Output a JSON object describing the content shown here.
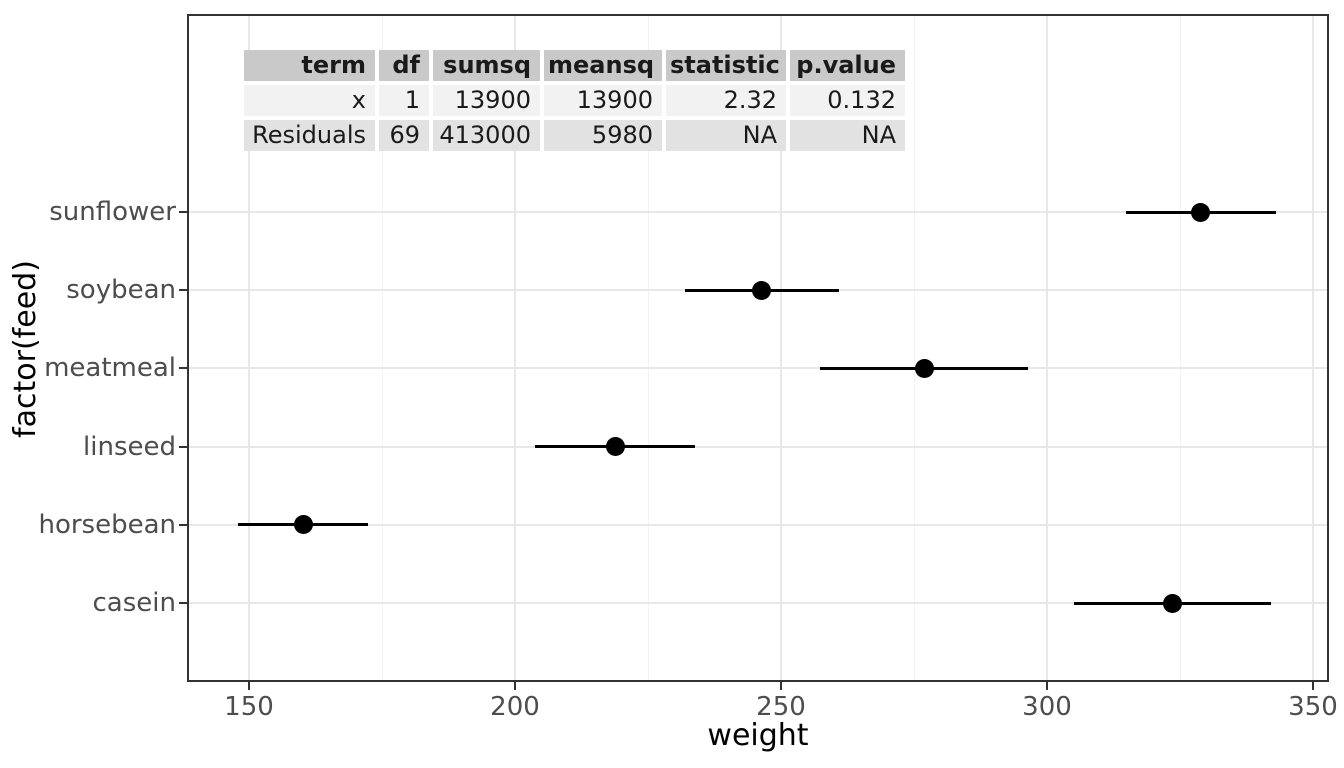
{
  "chart_data": {
    "type": "pointrange",
    "title": "",
    "xlabel": "weight",
    "ylabel": "factor(feed)",
    "x_ticks": [
      150,
      200,
      250,
      300,
      350
    ],
    "x_minor_ticks": [
      175,
      225,
      275,
      325
    ],
    "xlim": [
      138,
      353
    ],
    "grid": true,
    "legend": "none",
    "point_color": "#000000",
    "categories": [
      "sunflower",
      "soybean",
      "meatmeal",
      "linseed",
      "horsebean",
      "casein"
    ],
    "series": [
      {
        "category": "sunflower",
        "mean": 328.9,
        "low": 314.8,
        "high": 343.0
      },
      {
        "category": "soybean",
        "mean": 246.4,
        "low": 232.0,
        "high": 260.9
      },
      {
        "category": "meatmeal",
        "mean": 276.9,
        "low": 257.3,
        "high": 296.5
      },
      {
        "category": "linseed",
        "mean": 218.8,
        "low": 203.7,
        "high": 233.8
      },
      {
        "category": "horsebean",
        "mean": 160.2,
        "low": 148.0,
        "high": 172.4
      },
      {
        "category": "casein",
        "mean": 323.6,
        "low": 305.0,
        "high": 342.2
      }
    ]
  },
  "anova_table": {
    "headers": [
      "term",
      "df",
      "sumsq",
      "meansq",
      "statistic",
      "p.value"
    ],
    "rows": [
      [
        "x",
        "1",
        "13900",
        "13900",
        "2.32",
        "0.132"
      ],
      [
        "Residuals",
        "69",
        "413000",
        "5980",
        "NA",
        "NA"
      ]
    ]
  },
  "colors": {
    "header_bg": "#c9c9c9",
    "row1_bg": "#f2f2f2",
    "row2_bg": "#e2e2e2",
    "grid_major": "#e7e7e7",
    "grid_minor": "#f2f2f2",
    "panel_border": "#333333",
    "tick_label": "#4d4d4d",
    "point": "#000000"
  }
}
